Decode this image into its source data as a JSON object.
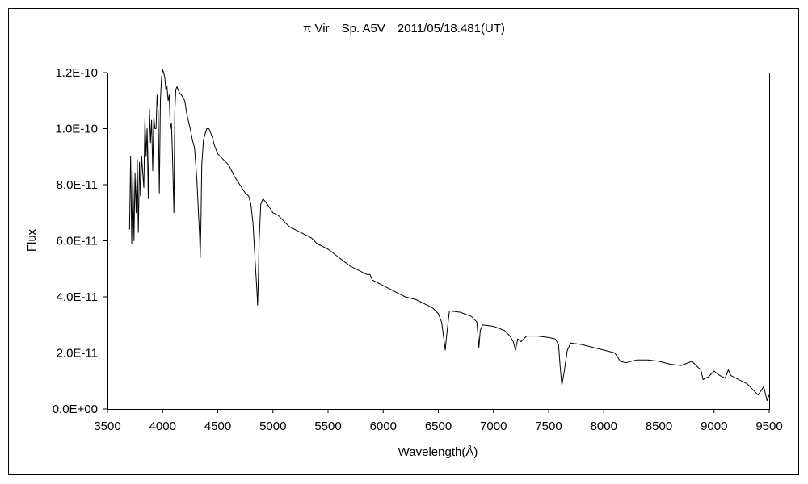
{
  "chart_data": {
    "type": "line",
    "title": "π Vir　Sp. A5V　2011/05/18.481(UT)",
    "xlabel": "Wavelength(Å)",
    "ylabel": "Flux",
    "xlim": [
      3500,
      9500
    ],
    "ylim": [
      0,
      1.2e-10
    ],
    "x_ticks": [
      3500,
      4000,
      4500,
      5000,
      5500,
      6000,
      6500,
      7000,
      7500,
      8000,
      8500,
      9000,
      9500
    ],
    "x_tick_labels": [
      "3500",
      "4000",
      "4500",
      "5000",
      "5500",
      "6000",
      "6500",
      "7000",
      "7500",
      "8000",
      "8500",
      "9000",
      "9500"
    ],
    "y_ticks": [
      0,
      2e-11,
      4e-11,
      6e-11,
      8e-11,
      1e-10,
      1.2e-10
    ],
    "y_tick_labels": [
      "0.0E+00",
      "2.0E-11",
      "4.0E-11",
      "6.0E-11",
      "8.0E-11",
      "1.0E-10",
      "1.2E-10"
    ],
    "grid": false,
    "legend": "none",
    "line_color": "#000000",
    "series": [
      {
        "x": [
          3700,
          3710,
          3720,
          3730,
          3740,
          3750,
          3760,
          3770,
          3780,
          3790,
          3800,
          3810,
          3820,
          3830,
          3840,
          3850,
          3860,
          3870,
          3880,
          3890,
          3900,
          3910,
          3920,
          3930,
          3940,
          3950,
          3960,
          3970,
          3980,
          3990,
          4000,
          4010,
          4020,
          4030,
          4040,
          4050,
          4060,
          4070,
          4080,
          4090,
          4102,
          4110,
          4120,
          4130,
          4150,
          4170,
          4200,
          4220,
          4250,
          4270,
          4290,
          4310,
          4325,
          4335,
          4341,
          4347,
          4355,
          4370,
          4400,
          4420,
          4450,
          4470,
          4500,
          4550,
          4600,
          4650,
          4700,
          4750,
          4780,
          4800,
          4820,
          4840,
          4855,
          4861,
          4867,
          4875,
          4890,
          4910,
          4950,
          5000,
          5050,
          5100,
          5150,
          5200,
          5250,
          5300,
          5350,
          5400,
          5450,
          5500,
          5600,
          5700,
          5800,
          5850,
          5880,
          5900,
          5950,
          6000,
          6100,
          6200,
          6300,
          6400,
          6450,
          6500,
          6530,
          6550,
          6563,
          6575,
          6600,
          6700,
          6800,
          6850,
          6868,
          6880,
          6900,
          7000,
          7100,
          7150,
          7180,
          7200,
          7220,
          7250,
          7300,
          7400,
          7500,
          7560,
          7590,
          7605,
          7620,
          7640,
          7670,
          7700,
          7800,
          7900,
          8000,
          8100,
          8150,
          8200,
          8300,
          8400,
          8500,
          8600,
          8700,
          8800,
          8850,
          8880,
          8900,
          8950,
          9000,
          9050,
          9100,
          9130,
          9150,
          9200,
          9250,
          9300,
          9350,
          9400,
          9450,
          9480,
          9500
        ],
        "y": [
          6.4e-11,
          9e-11,
          5.9e-11,
          8.5e-11,
          6e-11,
          8.4e-11,
          7e-11,
          8.9e-11,
          6.3e-11,
          8.8e-11,
          7.6e-11,
          9e-11,
          8.4e-11,
          7.9e-11,
          1.04e-10,
          9e-11,
          1e-10,
          7.5e-11,
          1.07e-10,
          9.5e-11,
          1.03e-10,
          8.5e-11,
          1.04e-10,
          1e-10,
          1e-10,
          1.12e-10,
          1.06e-10,
          7.7e-11,
          1.1e-10,
          1.18e-10,
          1.21e-10,
          1.2e-10,
          1.18e-10,
          1.14e-10,
          1.15e-10,
          1.1e-10,
          1.12e-10,
          1e-10,
          1.02e-10,
          9e-11,
          7e-11,
          1.06e-10,
          1.14e-10,
          1.15e-10,
          1.13e-10,
          1.12e-10,
          1.1e-10,
          1.05e-10,
          1e-10,
          9.6e-11,
          9.3e-11,
          8.2e-11,
          7e-11,
          6.2e-11,
          5.4e-11,
          6.5e-11,
          8.7e-11,
          9.6e-11,
          1e-10,
          1e-10,
          9.7e-11,
          9.4e-11,
          9.1e-11,
          8.9e-11,
          8.7e-11,
          8.3e-11,
          8e-11,
          7.7e-11,
          7.6e-11,
          7.3e-11,
          6.6e-11,
          5.2e-11,
          4.2e-11,
          3.7e-11,
          4.5e-11,
          6e-11,
          7.3e-11,
          7.5e-11,
          7.3e-11,
          7e-11,
          6.9e-11,
          6.7e-11,
          6.5e-11,
          6.4e-11,
          6.3e-11,
          6.2e-11,
          6.1e-11,
          5.9e-11,
          5.8e-11,
          5.7e-11,
          5.4e-11,
          5.1e-11,
          4.9e-11,
          4.8e-11,
          4.8e-11,
          4.6e-11,
          4.5e-11,
          4.4e-11,
          4.2e-11,
          4e-11,
          3.9e-11,
          3.7e-11,
          3.6e-11,
          3.4e-11,
          3.1e-11,
          2.5e-11,
          2.1e-11,
          2.6e-11,
          3.5e-11,
          3.45e-11,
          3.3e-11,
          3.1e-11,
          2.2e-11,
          2.8e-11,
          3e-11,
          2.95e-11,
          2.8e-11,
          2.6e-11,
          2.4e-11,
          2.1e-11,
          2.5e-11,
          2.4e-11,
          2.6e-11,
          2.6e-11,
          2.55e-11,
          2.5e-11,
          2.3e-11,
          1.5e-11,
          8.5e-12,
          1.3e-11,
          2.1e-11,
          2.35e-11,
          2.3e-11,
          2.2e-11,
          2.1e-11,
          2e-11,
          1.7e-11,
          1.65e-11,
          1.75e-11,
          1.75e-11,
          1.7e-11,
          1.6e-11,
          1.55e-11,
          1.7e-11,
          1.5e-11,
          1.4e-11,
          1.05e-11,
          1.15e-11,
          1.35e-11,
          1.2e-11,
          1.1e-11,
          1.4e-11,
          1.2e-11,
          1.1e-11,
          1e-11,
          9e-12,
          7e-12,
          5e-12,
          8e-12,
          3e-12,
          5e-12
        ]
      }
    ]
  }
}
